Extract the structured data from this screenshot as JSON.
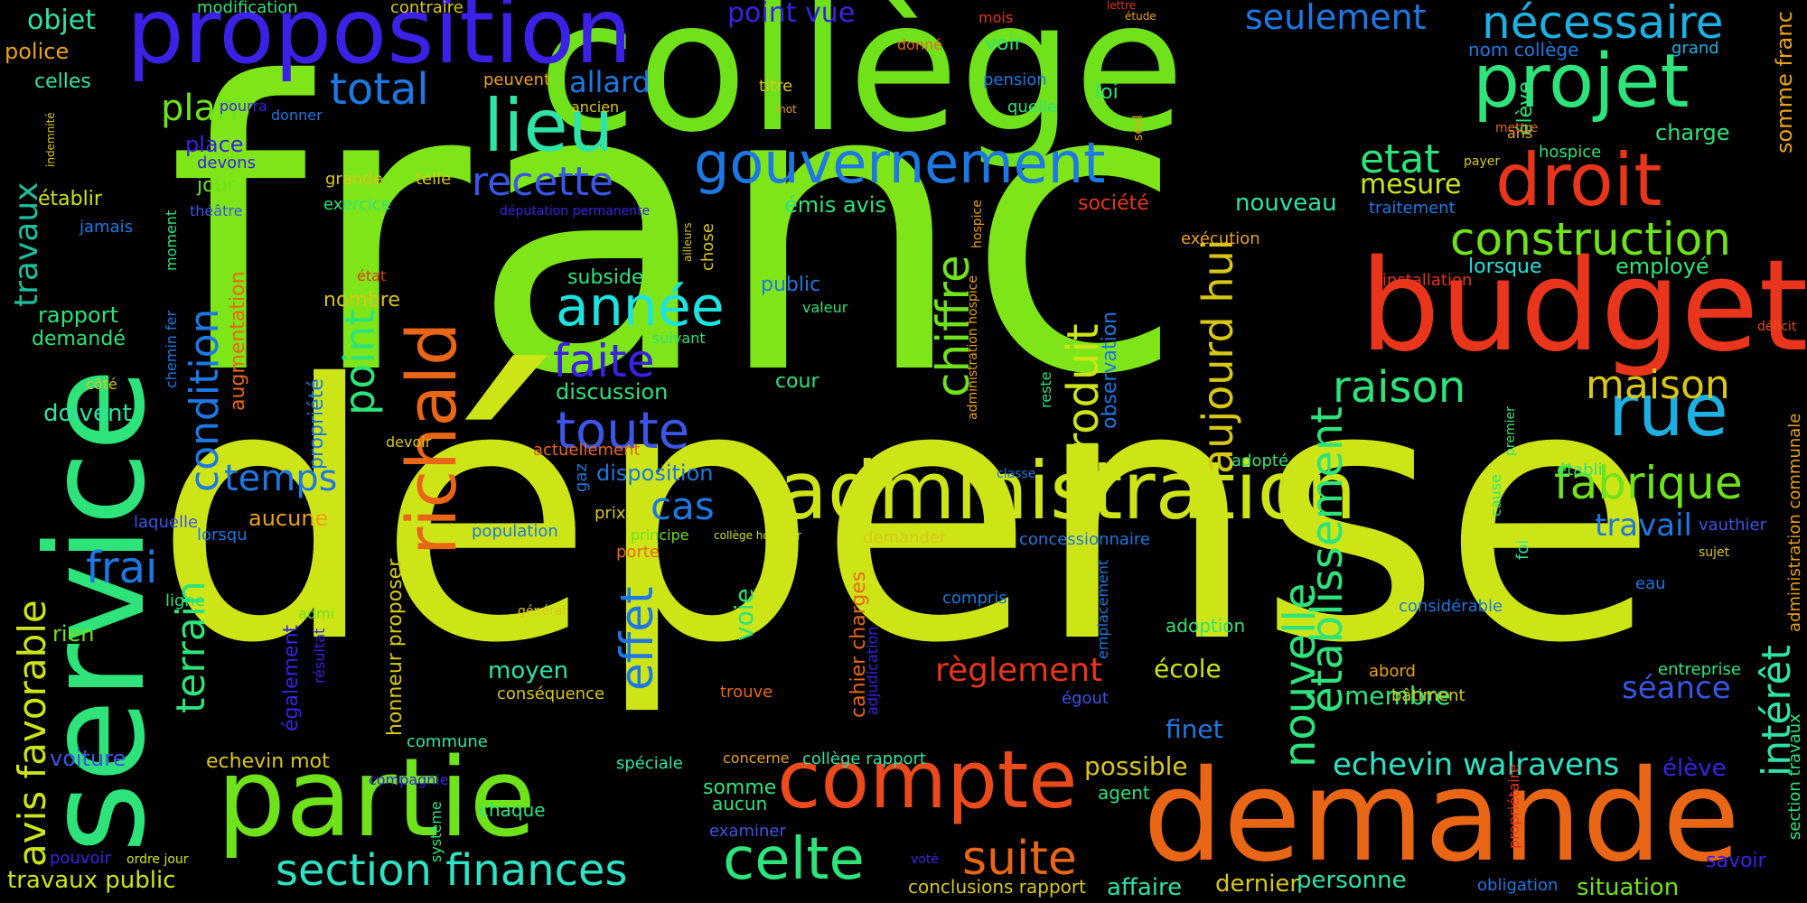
{
  "background_color": "#000000",
  "words": [
    {
      "text": "franc",
      "color": "#7ee518"
    },
    {
      "text": "dépense",
      "color": "#cde516"
    },
    {
      "text": "service",
      "color": "#2de37a"
    },
    {
      "text": "collège",
      "color": "#6fe21b"
    },
    {
      "text": "demande",
      "color": "#ea6617"
    },
    {
      "text": "proposition",
      "color": "#3b21e6"
    },
    {
      "text": "budget",
      "color": "#e8351c"
    },
    {
      "text": "partie",
      "color": "#6fe21b"
    },
    {
      "text": "administration",
      "color": "#cde516"
    },
    {
      "text": "compte",
      "color": "#ea4a1c"
    },
    {
      "text": "projet",
      "color": "#2de37a"
    },
    {
      "text": "droit",
      "color": "#e8351c"
    },
    {
      "text": "rue",
      "color": "#1db0e3"
    },
    {
      "text": "lieu",
      "color": "#2de3a8"
    },
    {
      "text": "richald",
      "color": "#ea6617"
    },
    {
      "text": "gouvernement",
      "color": "#1d78e3"
    },
    {
      "text": "celte",
      "color": "#2de37a"
    },
    {
      "text": "suite",
      "color": "#ea6617"
    },
    {
      "text": "section finances",
      "color": "#2de3c4"
    },
    {
      "text": "établissement",
      "color": "#2de37a"
    },
    {
      "text": "construction",
      "color": "#6fe21b"
    },
    {
      "text": "fabrique",
      "color": "#6fe21b"
    },
    {
      "text": "année",
      "color": "#1de3e0"
    },
    {
      "text": "toute",
      "color": "#3b55e6"
    },
    {
      "text": "avis favorable",
      "color": "#cde516"
    },
    {
      "text": "travaux",
      "color": "#1dbf9e"
    },
    {
      "text": "nécessaire",
      "color": "#1db0e3"
    },
    {
      "text": "raison",
      "color": "#2de37a"
    },
    {
      "text": "maison",
      "color": "#d9c716"
    },
    {
      "text": "nouvelle",
      "color": "#2de37a"
    },
    {
      "text": "intérêt",
      "color": "#2de3a8"
    },
    {
      "text": "aujourd hui",
      "color": "#d9c716"
    },
    {
      "text": "produit",
      "color": "#cde516"
    },
    {
      "text": "chiffre",
      "color": "#6fe21b"
    },
    {
      "text": "effet",
      "color": "#1d78e3"
    },
    {
      "text": "terrain",
      "color": "#2de37a"
    },
    {
      "text": "condition",
      "color": "#1d78e3"
    },
    {
      "text": "point",
      "color": "#2de37a"
    },
    {
      "text": "total",
      "color": "#1d78e3"
    },
    {
      "text": "plan",
      "color": "#6fe21b"
    },
    {
      "text": "recette",
      "color": "#3b55e6"
    },
    {
      "text": "seulement",
      "color": "#1d78e3"
    },
    {
      "text": "etat",
      "color": "#2de37a"
    },
    {
      "text": "mesure",
      "color": "#cde516"
    },
    {
      "text": "faite",
      "color": "#3b21e6"
    },
    {
      "text": "temps",
      "color": "#1d78e3"
    },
    {
      "text": "cas",
      "color": "#1d78e3"
    },
    {
      "text": "frai",
      "color": "#1d78e3"
    },
    {
      "text": "règlement",
      "color": "#e8351c"
    },
    {
      "text": "echevin walravens",
      "color": "#2de3c4"
    },
    {
      "text": "séance",
      "color": "#3b55e6"
    },
    {
      "text": "travail",
      "color": "#1d78e3"
    },
    {
      "text": "allard",
      "color": "#1d78e3"
    },
    {
      "text": "point vue",
      "color": "#3b21e6"
    },
    {
      "text": "objet",
      "color": "#2de3a8"
    },
    {
      "text": "police",
      "color": "#eba217"
    },
    {
      "text": "celles",
      "color": "#2de3a8"
    },
    {
      "text": "modification",
      "color": "#2de37a"
    },
    {
      "text": "contraire",
      "color": "#d9c716"
    },
    {
      "text": "mois",
      "color": "#e8351c"
    },
    {
      "text": "lettre",
      "color": "#e8351c"
    },
    {
      "text": "étude",
      "color": "#eba217"
    },
    {
      "text": "nom collège",
      "color": "#1d78e3"
    },
    {
      "text": "grand",
      "color": "#1db0e3"
    },
    {
      "text": "somme franc",
      "color": "#eba217"
    },
    {
      "text": "élève",
      "color": "#2de37a"
    },
    {
      "text": "charge",
      "color": "#2de37a"
    },
    {
      "text": "hospice",
      "color": "#2de37a"
    },
    {
      "text": "ans",
      "color": "#eba217"
    },
    {
      "text": "mettre",
      "color": "#ea6617"
    },
    {
      "text": "payer",
      "color": "#d9c716"
    },
    {
      "text": "traitement",
      "color": "#1d78e3"
    },
    {
      "text": "employé",
      "color": "#2de37a"
    },
    {
      "text": "installation",
      "color": "#e8351c"
    },
    {
      "text": "lorsque",
      "color": "#1de3e0"
    },
    {
      "text": "déficit",
      "color": "#ea4a1c"
    },
    {
      "text": "administration communale",
      "color": "#eba217"
    },
    {
      "text": "vauthier",
      "color": "#3b55e6"
    },
    {
      "text": "sujet",
      "color": "#d9c716"
    },
    {
      "text": "eau",
      "color": "#1d78e3"
    },
    {
      "text": "considérable",
      "color": "#1d78e3"
    },
    {
      "text": "entreprise",
      "color": "#2de37a"
    },
    {
      "text": "section travaux",
      "color": "#2de37a"
    },
    {
      "text": "élève",
      "color": "#3b21e6"
    },
    {
      "text": "savoir",
      "color": "#3b21e6"
    },
    {
      "text": "situation",
      "color": "#6fe21b"
    },
    {
      "text": "obligation",
      "color": "#1d78e3"
    },
    {
      "text": "personne",
      "color": "#2de3a8"
    },
    {
      "text": "dernier",
      "color": "#d9c716"
    },
    {
      "text": "affaire",
      "color": "#2de3a8"
    },
    {
      "text": "conclusions rapport",
      "color": "#d9c716"
    },
    {
      "text": "voté",
      "color": "#3b21e6"
    },
    {
      "text": "membre",
      "color": "#2de37a"
    },
    {
      "text": "bâtiment",
      "color": "#d9c716"
    },
    {
      "text": "abord",
      "color": "#eba217"
    },
    {
      "text": "égout",
      "color": "#3b55e6"
    },
    {
      "text": "école",
      "color": "#cde516"
    },
    {
      "text": "adoption",
      "color": "#2de37a"
    },
    {
      "text": "emplacement",
      "color": "#1d78e3"
    },
    {
      "text": "finet",
      "color": "#1d78e3"
    },
    {
      "text": "possible",
      "color": "#d9c716"
    },
    {
      "text": "agent",
      "color": "#2de37a"
    },
    {
      "text": "propriétaire",
      "color": "#e8351c"
    },
    {
      "text": "établi",
      "color": "#2de37a"
    },
    {
      "text": "foi",
      "color": "#2de3a8"
    },
    {
      "text": "cause",
      "color": "#2de37a"
    },
    {
      "text": "premier",
      "color": "#2de37a"
    },
    {
      "text": "adopté",
      "color": "#2de37a"
    },
    {
      "text": "concessionnaire",
      "color": "#1d78e3"
    },
    {
      "text": "classe",
      "color": "#1d78e3"
    },
    {
      "text": "reste",
      "color": "#2de37a"
    },
    {
      "text": "observation",
      "color": "#1d78e3"
    },
    {
      "text": "compris",
      "color": "#1d78e3"
    },
    {
      "text": "société",
      "color": "#e8351c"
    },
    {
      "text": "exécution",
      "color": "#eba217"
    },
    {
      "text": "nouveau",
      "color": "#2de3a8"
    },
    {
      "text": "seul",
      "color": "#eba217"
    },
    {
      "text": "loi",
      "color": "#2de37a"
    },
    {
      "text": "quelle",
      "color": "#2de37a"
    },
    {
      "text": "pension",
      "color": "#1d78e3"
    },
    {
      "text": "voir",
      "color": "#2de37a"
    },
    {
      "text": "donné",
      "color": "#ea6617"
    },
    {
      "text": "titre",
      "color": "#d9c716"
    },
    {
      "text": "mot",
      "color": "#eba217"
    },
    {
      "text": "ancien",
      "color": "#d9c716"
    },
    {
      "text": "peuvent",
      "color": "#eba217"
    },
    {
      "text": "pourra",
      "color": "#3b21e6"
    },
    {
      "text": "donner",
      "color": "#1d78e3"
    },
    {
      "text": "place",
      "color": "#3b21e6"
    },
    {
      "text": "devons",
      "color": "#3b21e6"
    },
    {
      "text": "jour",
      "color": "#6fe21b"
    },
    {
      "text": "grande",
      "color": "#d9c716"
    },
    {
      "text": "telle",
      "color": "#d9c716"
    },
    {
      "text": "exercice",
      "color": "#2de37a"
    },
    {
      "text": "théâtre",
      "color": "#3b55e6"
    },
    {
      "text": "émis avis",
      "color": "#2de37a"
    },
    {
      "text": "députation permanente",
      "color": "#3b21e6"
    },
    {
      "text": "ailleurs",
      "color": "#d9c716"
    },
    {
      "text": "chose",
      "color": "#d9c716"
    },
    {
      "text": "hospice",
      "color": "#eba217"
    },
    {
      "text": "administration hospice",
      "color": "#eba217"
    },
    {
      "text": "état",
      "color": "#e8351c"
    },
    {
      "text": "subside",
      "color": "#2de37a"
    },
    {
      "text": "public",
      "color": "#1d78e3"
    },
    {
      "text": "valeur",
      "color": "#2de37a"
    },
    {
      "text": "suivant",
      "color": "#2de37a"
    },
    {
      "text": "cour",
      "color": "#2de37a"
    },
    {
      "text": "discussion",
      "color": "#2de37a"
    },
    {
      "text": "disposition",
      "color": "#1d78e3"
    },
    {
      "text": "actuellement",
      "color": "#ea6617"
    },
    {
      "text": "devoir",
      "color": "#d9c716"
    },
    {
      "text": "gaz",
      "color": "#1d78e3"
    },
    {
      "text": "prix",
      "color": "#d9c716"
    },
    {
      "text": "principe",
      "color": "#6fe21b"
    },
    {
      "text": "collège honneur",
      "color": "#cde516"
    },
    {
      "text": "porte",
      "color": "#ea6617"
    },
    {
      "text": "demander",
      "color": "#d9c716"
    },
    {
      "text": "cahier charges",
      "color": "#ea6617"
    },
    {
      "text": "adjudication",
      "color": "#3b21e6"
    },
    {
      "text": "population",
      "color": "#1d78e3"
    },
    {
      "text": "voie",
      "color": "#2de37a"
    },
    {
      "text": "moyen",
      "color": "#2de3a8"
    },
    {
      "text": "conséquence",
      "color": "#d9c716"
    },
    {
      "text": "trouve",
      "color": "#ea6617"
    },
    {
      "text": "honneur proposer",
      "color": "#d9c716"
    },
    {
      "text": "général",
      "color": "#d9c716"
    },
    {
      "text": "commune",
      "color": "#2de3a8"
    },
    {
      "text": "compagnie",
      "color": "#3b21e6"
    },
    {
      "text": "spéciale",
      "color": "#2de3a8"
    },
    {
      "text": "concerne",
      "color": "#eba217"
    },
    {
      "text": "collège rapport",
      "color": "#2de3a8"
    },
    {
      "text": "somme",
      "color": "#2de37a"
    },
    {
      "text": "aucun",
      "color": "#2de37a"
    },
    {
      "text": "chaque",
      "color": "#2de37a"
    },
    {
      "text": "examiner",
      "color": "#3b55e6"
    },
    {
      "text": "système",
      "color": "#2de37a"
    },
    {
      "text": "echevin mot",
      "color": "#d9c716"
    },
    {
      "text": "voiture",
      "color": "#3b55e6"
    },
    {
      "text": "pouvoir",
      "color": "#3b21e6"
    },
    {
      "text": "ordre jour",
      "color": "#cde516"
    },
    {
      "text": "travaux public",
      "color": "#cde516"
    },
    {
      "text": "également",
      "color": "#3b21e6"
    },
    {
      "text": "résultat",
      "color": "#3b21e6"
    },
    {
      "text": "admi",
      "color": "#6fe21b"
    },
    {
      "text": "rien",
      "color": "#6fe21b"
    },
    {
      "text": "ligne",
      "color": "#2de37a"
    },
    {
      "text": "lorsqu",
      "color": "#1d78e3"
    },
    {
      "text": "laquelle",
      "color": "#3b55e6"
    },
    {
      "text": "aucune",
      "color": "#eba217"
    },
    {
      "text": "doivent",
      "color": "#2de3a8"
    },
    {
      "text": "côté",
      "color": "#d9c716"
    },
    {
      "text": "propriété",
      "color": "#1d78e3"
    },
    {
      "text": "chemin fer",
      "color": "#1d78e3"
    },
    {
      "text": "augmentation",
      "color": "#ea6617"
    },
    {
      "text": "nombre",
      "color": "#d9c716"
    },
    {
      "text": "demandé",
      "color": "#2de37a"
    },
    {
      "text": "rapport",
      "color": "#2de37a"
    },
    {
      "text": "moment",
      "color": "#2de37a"
    },
    {
      "text": "jamais",
      "color": "#1d78e3"
    },
    {
      "text": "établir",
      "color": "#cde516"
    },
    {
      "text": "indemnité",
      "color": "#d9c716"
    }
  ]
}
